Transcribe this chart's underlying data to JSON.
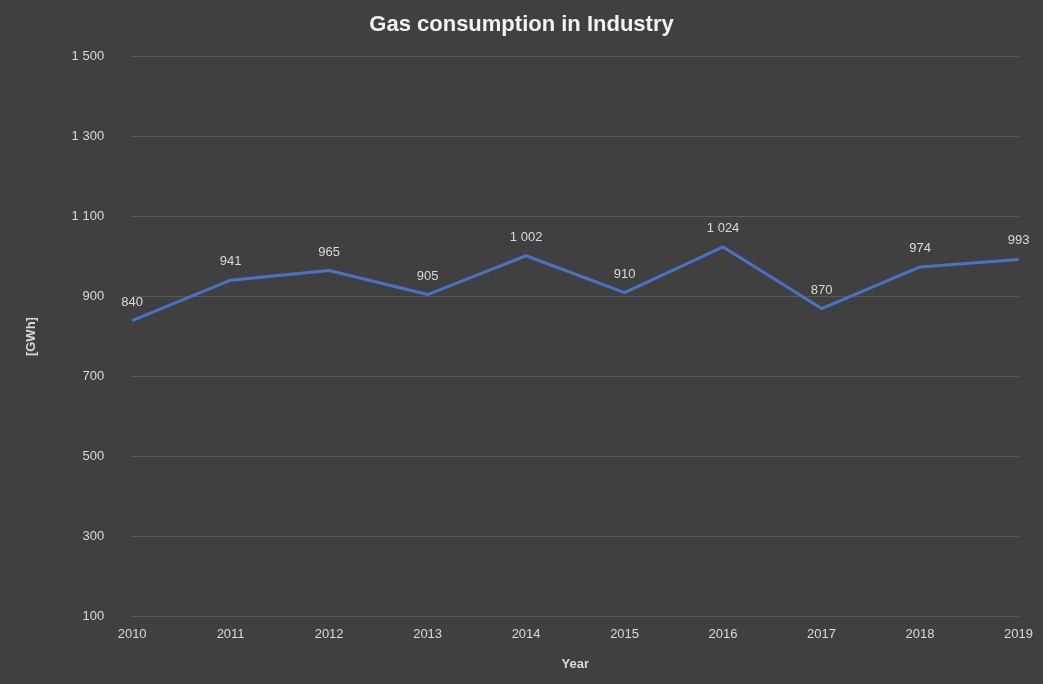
{
  "chart_data": {
    "type": "line",
    "title": "Gas consumption in Industry",
    "xlabel": "Year",
    "ylabel": "[GWh]",
    "categories": [
      "2010",
      "2011",
      "2012",
      "2013",
      "2014",
      "2015",
      "2016",
      "2017",
      "2018",
      "2019"
    ],
    "series": [
      {
        "color": "#4a72c4",
        "values": [
          840,
          941,
          965,
          905,
          1002,
          910,
          1024,
          870,
          974,
          993
        ],
        "value_labels": [
          "840",
          "941",
          "965",
          "905",
          "1 002",
          "910",
          "1 024",
          "870",
          "974",
          "993"
        ]
      }
    ],
    "ylim": [
      100,
      1500
    ],
    "yticks": [
      {
        "value": 100,
        "label": "100"
      },
      {
        "value": 300,
        "label": "300"
      },
      {
        "value": 500,
        "label": "500"
      },
      {
        "value": 700,
        "label": "700"
      },
      {
        "value": 900,
        "label": "900"
      },
      {
        "value": 1100,
        "label": "1 100"
      },
      {
        "value": 1300,
        "label": "1 300"
      },
      {
        "value": 1500,
        "label": "1 500"
      }
    ],
    "grid": "y",
    "legend": false,
    "marker": "none",
    "line_style": "solid"
  }
}
